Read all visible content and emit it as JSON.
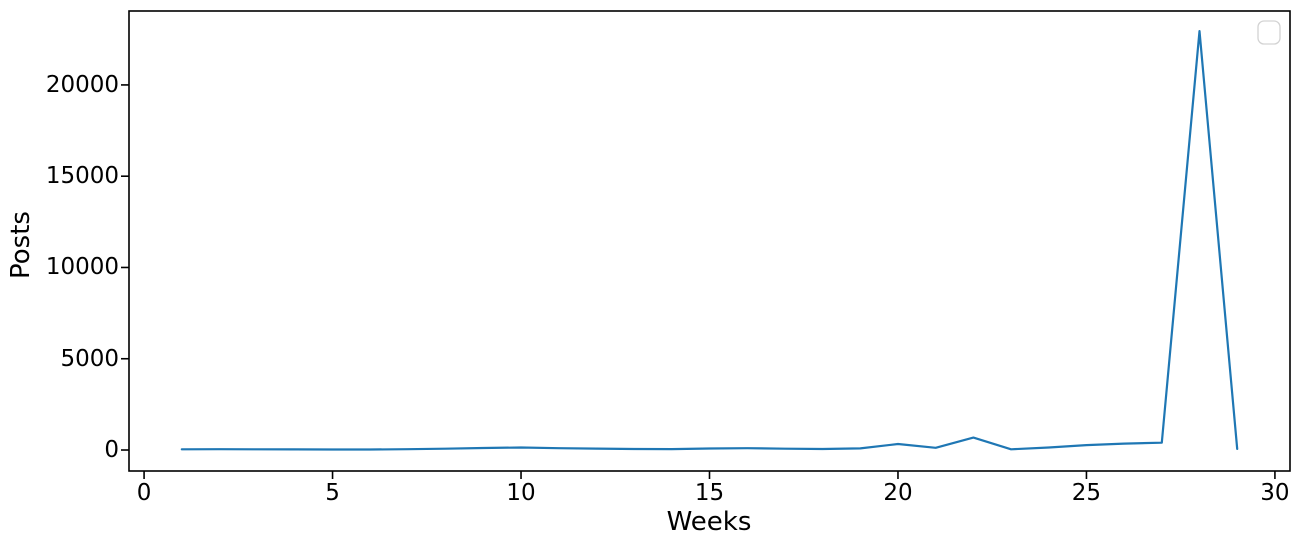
{
  "chart_data": {
    "type": "line",
    "title": "",
    "xlabel": "Weeks",
    "ylabel": "Posts",
    "x": [
      1,
      2,
      3,
      4,
      5,
      6,
      7,
      8,
      9,
      10,
      11,
      12,
      13,
      14,
      15,
      16,
      17,
      18,
      19,
      20,
      21,
      22,
      23,
      24,
      25,
      26,
      27,
      28,
      29
    ],
    "values": [
      40,
      45,
      40,
      35,
      30,
      30,
      45,
      70,
      110,
      140,
      100,
      75,
      55,
      50,
      85,
      100,
      70,
      55,
      90,
      330,
      120,
      680,
      40,
      140,
      270,
      350,
      400,
      22950,
      60
    ],
    "x_ticks": [
      0,
      5,
      10,
      15,
      20,
      25,
      30
    ],
    "y_ticks": [
      0,
      5000,
      10000,
      15000,
      20000
    ],
    "xlim": [
      -0.4,
      30.4
    ],
    "ylim": [
      -1150,
      24050
    ],
    "grid": false,
    "line_color": "#1f77b4",
    "axis_color": "#000000",
    "legend": {
      "visible": true,
      "position": "upper-right",
      "entries": [],
      "border_color": "#d3d3d3"
    }
  }
}
